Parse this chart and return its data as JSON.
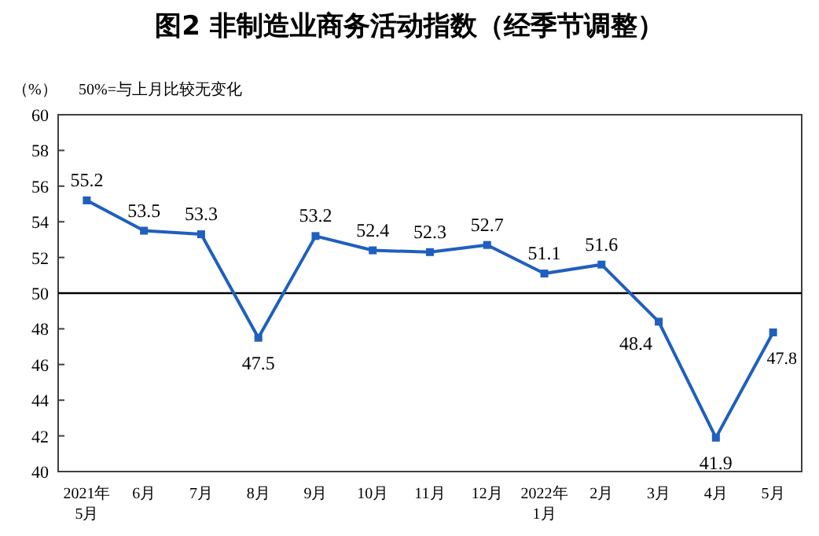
{
  "chart_data": {
    "type": "line",
    "title": "图2  非制造业商务活动指数（经季节调整）",
    "ylabel": "（%）",
    "annotations": [
      "50%=与上月比较无变化"
    ],
    "categories": [
      "2021年\n5月",
      "6月",
      "7月",
      "8月",
      "9月",
      "10月",
      "11月",
      "12月",
      "2022年\n1月",
      "2月",
      "3月",
      "4月",
      "5月"
    ],
    "series": [
      {
        "color": "#1f5fbf",
        "values": [
          55.2,
          53.5,
          53.3,
          47.5,
          53.2,
          52.4,
          52.3,
          52.7,
          51.1,
          51.6,
          48.4,
          41.9,
          47.8
        ]
      }
    ],
    "ylim": [
      40,
      60
    ],
    "yticks": [
      40,
      42,
      44,
      46,
      48,
      50,
      52,
      54,
      56,
      58,
      60
    ],
    "ref_lines": [
      {
        "axis": "y",
        "value": 50,
        "color": "#000000"
      }
    ],
    "marker": "square",
    "data_labels": true,
    "grid": false
  }
}
